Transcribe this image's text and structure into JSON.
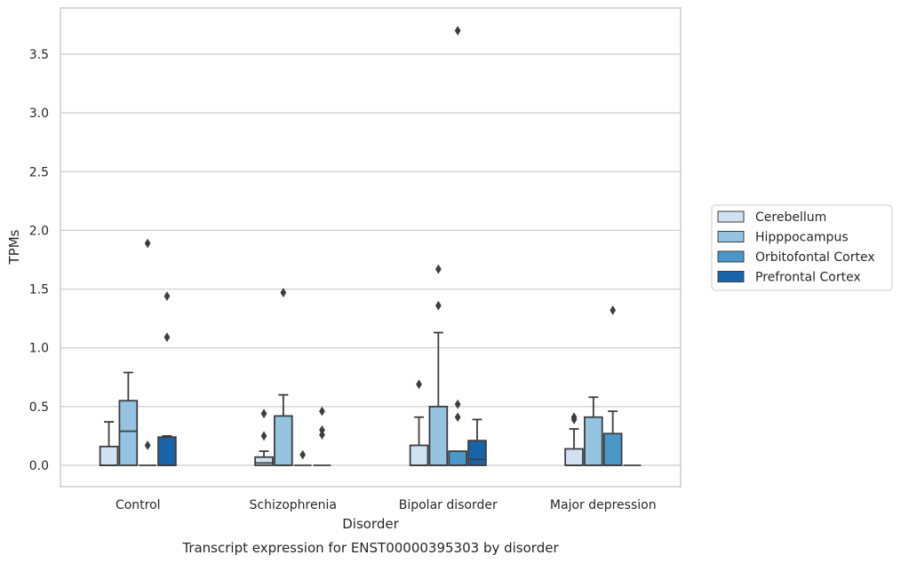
{
  "chart_data": {
    "type": "box",
    "title": "",
    "caption": "Transcript expression for ENST00000395303 by disorder",
    "xlabel": "Disorder",
    "ylabel": "TPMs",
    "ylim": [
      -0.18,
      3.9
    ],
    "yticks": [
      "0.0",
      "0.5",
      "1.0",
      "1.5",
      "2.0",
      "2.5",
      "3.0",
      "3.5"
    ],
    "ytick_values": [
      0,
      0.5,
      1.0,
      1.5,
      2.0,
      2.5,
      3.0,
      3.5
    ],
    "grid": true,
    "legend_position": "right",
    "categories": [
      "Control",
      "Schizophrenia",
      "Bipolar disorder",
      "Major depression"
    ],
    "series": [
      {
        "name": "Cerebellum",
        "color": "#d0e1f2",
        "boxes": [
          {
            "q1": 0.0,
            "median": 0.0,
            "q3": 0.16,
            "wlo": 0.0,
            "whi": 0.37,
            "outliers": []
          },
          {
            "q1": 0.0,
            "median": 0.02,
            "q3": 0.07,
            "wlo": 0.0,
            "whi": 0.12,
            "outliers": [
              0.25,
              0.44
            ]
          },
          {
            "q1": 0.0,
            "median": 0.0,
            "q3": 0.17,
            "wlo": 0.0,
            "whi": 0.41,
            "outliers": [
              0.69
            ]
          },
          {
            "q1": 0.0,
            "median": 0.0,
            "q3": 0.14,
            "wlo": 0.0,
            "whi": 0.31,
            "outliers": [
              0.39,
              0.41
            ]
          }
        ]
      },
      {
        "name": "Hipppocampus",
        "color": "#94c4df",
        "boxes": [
          {
            "q1": 0.0,
            "median": 0.29,
            "q3": 0.55,
            "wlo": 0.0,
            "whi": 0.79,
            "outliers": []
          },
          {
            "q1": 0.0,
            "median": 0.0,
            "q3": 0.42,
            "wlo": 0.0,
            "whi": 0.6,
            "outliers": [
              1.47
            ]
          },
          {
            "q1": 0.0,
            "median": 0.0,
            "q3": 0.5,
            "wlo": 0.0,
            "whi": 1.13,
            "outliers": [
              1.36,
              1.67
            ]
          },
          {
            "q1": 0.0,
            "median": 0.0,
            "q3": 0.41,
            "wlo": 0.0,
            "whi": 0.58,
            "outliers": []
          }
        ]
      },
      {
        "name": "Orbitofontal Cortex",
        "color": "#4a98c9",
        "boxes": [
          {
            "q1": 0.0,
            "median": 0.0,
            "q3": 0.0,
            "wlo": 0.0,
            "whi": 0.0,
            "outliers": [
              0.17,
              1.89
            ]
          },
          {
            "q1": 0.0,
            "median": 0.0,
            "q3": 0.0,
            "wlo": 0.0,
            "whi": 0.0,
            "outliers": [
              0.09
            ]
          },
          {
            "q1": 0.0,
            "median": 0.0,
            "q3": 0.12,
            "wlo": 0.0,
            "whi": 0.12,
            "outliers": [
              0.41,
              0.52,
              3.7
            ]
          },
          {
            "q1": 0.0,
            "median": 0.0,
            "q3": 0.27,
            "wlo": 0.0,
            "whi": 0.46,
            "outliers": [
              1.32
            ]
          }
        ]
      },
      {
        "name": "Prefrontal Cortex",
        "color": "#1764ab",
        "boxes": [
          {
            "q1": 0.0,
            "median": 0.0,
            "q3": 0.24,
            "wlo": 0.0,
            "whi": 0.25,
            "outliers": [
              1.09,
              1.44
            ]
          },
          {
            "q1": 0.0,
            "median": 0.0,
            "q3": 0.0,
            "wlo": 0.0,
            "whi": 0.0,
            "outliers": [
              0.26,
              0.3,
              0.46
            ]
          },
          {
            "q1": 0.0,
            "median": 0.05,
            "q3": 0.21,
            "wlo": 0.0,
            "whi": 0.39,
            "outliers": []
          },
          {
            "q1": 0.0,
            "median": 0.0,
            "q3": 0.0,
            "wlo": 0.0,
            "whi": 0.0,
            "outliers": []
          }
        ]
      }
    ]
  }
}
